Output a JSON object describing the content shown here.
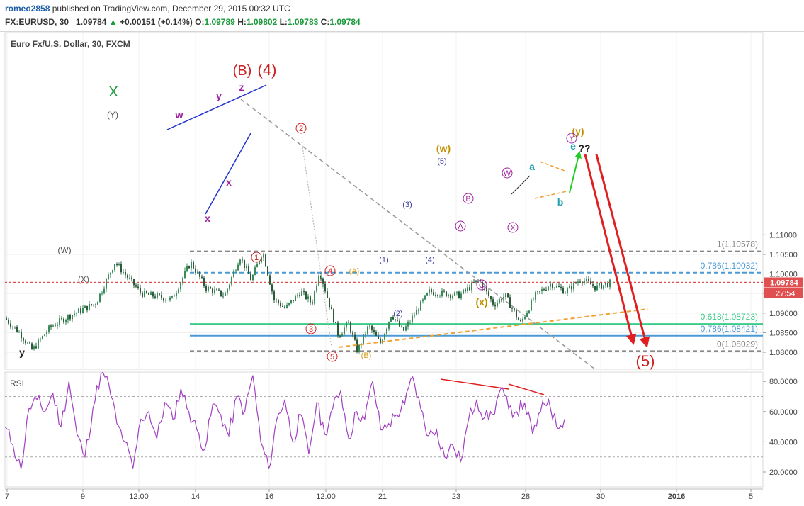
{
  "header": {
    "username": "romeo2858",
    "published_text": "published on TradingView.com, December 29, 2015 00:32 UTC",
    "symbol": "FX:EURUSD, 30",
    "last": "1.09784",
    "change_arrow": "▲",
    "change": "+0.00151 (+0.14%)",
    "o_label": "O:",
    "o_value": "1.09789",
    "h_label": "H:",
    "h_value": "1.09802",
    "l_label": "L:",
    "l_value": "1.09783",
    "c_label": "C:",
    "c_value": "1.09784"
  },
  "chart_data": [
    {
      "type": "candlestick",
      "title": "Euro Fx/U.S. Dollar, 30, FXCM",
      "ylim": [
        1.0775,
        1.1125
      ],
      "y_ticks": [
        1.08,
        1.085,
        1.09,
        1.095,
        1.1,
        1.105,
        1.11
      ],
      "y_tick_labels": [
        "1.08000",
        "1.08500",
        "1.09000",
        "1.09500",
        "1.10000",
        "1.10500",
        "1.11000"
      ],
      "x_tick_labels": [
        "7",
        "9",
        "12:00",
        "14",
        "16",
        "12:00",
        "21",
        "23",
        "28",
        "30",
        "2016",
        "5"
      ],
      "last_price_label": "1.09784",
      "countdown_label": "27:54",
      "price_path": [
        [
          0,
          1.0887
        ],
        [
          0.02,
          1.0848
        ],
        [
          0.036,
          1.0805
        ],
        [
          0.06,
          1.0865
        ],
        [
          0.09,
          1.0898
        ],
        [
          0.12,
          1.0925
        ],
        [
          0.145,
          1.103
        ],
        [
          0.18,
          1.095
        ],
        [
          0.22,
          1.0935
        ],
        [
          0.245,
          1.103
        ],
        [
          0.265,
          1.0965
        ],
        [
          0.29,
          1.0945
        ],
        [
          0.31,
          1.1045
        ],
        [
          0.325,
          1.0985
        ],
        [
          0.34,
          1.1058
        ],
        [
          0.355,
          1.0935
        ],
        [
          0.37,
          1.0912
        ],
        [
          0.39,
          1.0955
        ],
        [
          0.405,
          1.0925
        ],
        [
          0.415,
          1.101
        ],
        [
          0.44,
          1.0842
        ],
        [
          0.453,
          1.0875
        ],
        [
          0.465,
          1.0803
        ],
        [
          0.48,
          1.0868
        ],
        [
          0.495,
          1.0822
        ],
        [
          0.51,
          1.0898
        ],
        [
          0.525,
          1.0852
        ],
        [
          0.56,
          1.0955
        ],
        [
          0.6,
          1.0945
        ],
        [
          0.625,
          1.0985
        ],
        [
          0.645,
          1.0922
        ],
        [
          0.66,
          1.0945
        ],
        [
          0.68,
          1.0873
        ],
        [
          0.7,
          1.0945
        ],
        [
          0.72,
          1.0975
        ],
        [
          0.74,
          1.0955
        ],
        [
          0.76,
          1.0988
        ],
        [
          0.78,
          1.0965
        ],
        [
          0.8,
          1.0978
        ]
      ],
      "horizontal_levels": [
        {
          "label": "1(1.10578)",
          "value": 1.10578,
          "color": "#888888",
          "style": "dashed"
        },
        {
          "label": "0.786(1.10032)",
          "value": 1.10032,
          "color": "#4a9ad6",
          "style": "dashed"
        },
        {
          "label": "",
          "value": 1.09784,
          "color": "#e05050",
          "style": "dotted"
        },
        {
          "label": "0.618(1.08723)",
          "value": 1.08723,
          "color": "#3ccc88",
          "style": "solid"
        },
        {
          "label": "0.786(1.08421)",
          "value": 1.08421,
          "color": "#4a9ad6",
          "style": "solid"
        },
        {
          "label": "0(1.08029)",
          "value": 1.08029,
          "color": "#888888",
          "style": "dashed"
        }
      ],
      "wave_labels": [
        {
          "text": "X",
          "color": "#1a9a3a"
        },
        {
          "text": "(Y)",
          "color": "#555555"
        },
        {
          "text": "(W)",
          "color": "#555555"
        },
        {
          "text": "(X)",
          "color": "#555555"
        },
        {
          "text": "y",
          "color": "#222222"
        },
        {
          "text": "w",
          "color": "#a020a0"
        },
        {
          "text": "y",
          "color": "#a020a0"
        },
        {
          "text": "z",
          "color": "#a020a0"
        },
        {
          "text": "x",
          "color": "#a020a0"
        },
        {
          "text": "x",
          "color": "#a020a0"
        },
        {
          "text": "(B)",
          "color": "#cc2020"
        },
        {
          "text": "(4)",
          "color": "#cc2020"
        },
        {
          "text": "(5)",
          "color": "#cc2020"
        },
        {
          "text": "1",
          "color": "#cc2020"
        },
        {
          "text": "2",
          "color": "#cc2020"
        },
        {
          "text": "3",
          "color": "#cc2020"
        },
        {
          "text": "4",
          "color": "#cc2020"
        },
        {
          "text": "5",
          "color": "#cc2020"
        },
        {
          "text": "(1)",
          "color": "#3a3a9a"
        },
        {
          "text": "(2)",
          "color": "#3a3a9a"
        },
        {
          "text": "(3)",
          "color": "#3a3a9a"
        },
        {
          "text": "(4)",
          "color": "#3a3a9a"
        },
        {
          "text": "(5)",
          "color": "#3a3a9a"
        },
        {
          "text": "(A)",
          "color": "#d4a020"
        },
        {
          "text": "(B)",
          "color": "#d4a020"
        },
        {
          "text": "(w)",
          "color": "#c09000"
        },
        {
          "text": "(x)",
          "color": "#c09000"
        },
        {
          "text": "(y)",
          "color": "#c09000"
        },
        {
          "text": "A",
          "color": "#a020a0"
        },
        {
          "text": "B",
          "color": "#a020a0"
        },
        {
          "text": "C",
          "color": "#a020a0"
        },
        {
          "text": "W",
          "color": "#a020a0"
        },
        {
          "text": "X",
          "color": "#a020a0"
        },
        {
          "text": "Y",
          "color": "#a020a0"
        },
        {
          "text": "a",
          "color": "#20a0b0"
        },
        {
          "text": "b",
          "color": "#20a0b0"
        },
        {
          "text": "e",
          "color": "#20a0b0"
        },
        {
          "text": "??",
          "color": "#222222"
        }
      ]
    },
    {
      "type": "line",
      "title": "RSI",
      "ylim": [
        10,
        90
      ],
      "y_ticks": [
        20,
        40,
        60,
        80
      ],
      "y_tick_labels": [
        "20.0000",
        "40.0000",
        "60.0000",
        "80.0000"
      ],
      "reference_lines": [
        30,
        70
      ],
      "series": [
        {
          "color": "#a040c0",
          "values": [
            50,
            38,
            22,
            62,
            68,
            60,
            72,
            50,
            80,
            45,
            30,
            62,
            85,
            78,
            52,
            40,
            22,
            55,
            60,
            42,
            66,
            55,
            75,
            60,
            48,
            35,
            65,
            58,
            44,
            70,
            60,
            84,
            40,
            22,
            55,
            68,
            40,
            58,
            32,
            66,
            45,
            62,
            74,
            42,
            60,
            55,
            80,
            48,
            52,
            58,
            65,
            83,
            62,
            44,
            48,
            30,
            38,
            27,
            55,
            68,
            56,
            58,
            75,
            62,
            60,
            66,
            45,
            60,
            68,
            50,
            55
          ]
        }
      ]
    }
  ]
}
